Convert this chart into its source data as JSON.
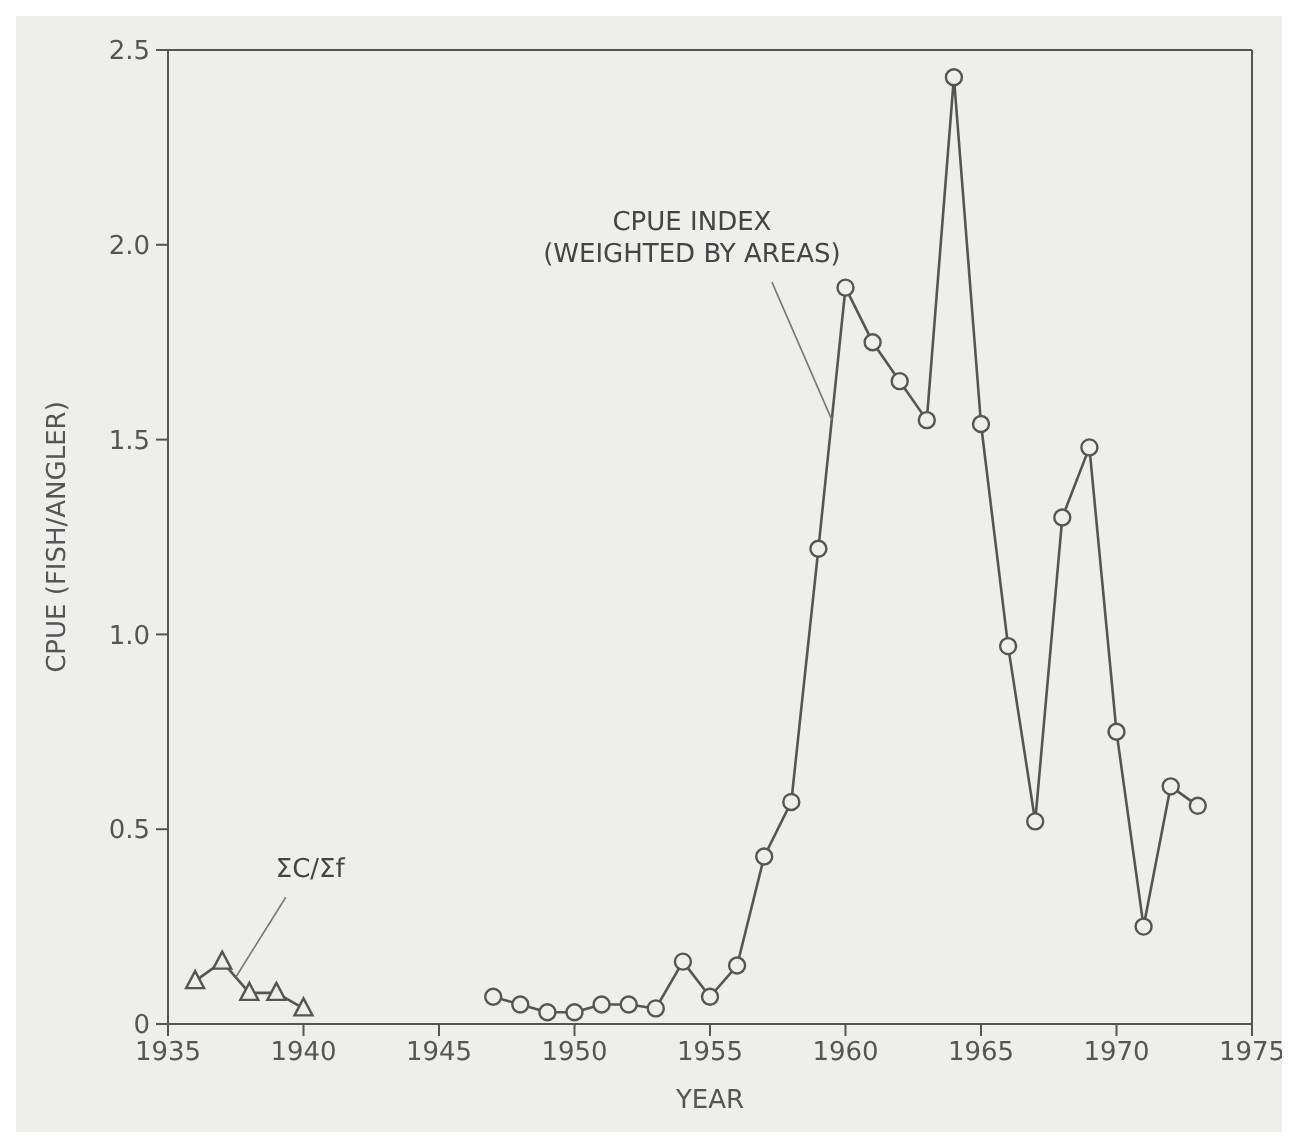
{
  "chart_data": {
    "type": "line",
    "xlabel": "YEAR",
    "ylabel": "CPUE (FISH/ANGLER)",
    "xlim": [
      1935,
      1975
    ],
    "xticks": [
      1935,
      1940,
      1945,
      1950,
      1955,
      1960,
      1965,
      1970,
      1975
    ],
    "ylim": [
      0,
      2.5
    ],
    "yticks": [
      0,
      {
        "value": 0.5,
        "label": "0.5"
      },
      {
        "value": 1,
        "label": "1.0"
      },
      {
        "value": 1.5,
        "label": "1.5"
      },
      {
        "value": 2,
        "label": "2.0"
      },
      {
        "value": 2.5,
        "label": "2.5"
      }
    ],
    "grid": false,
    "legend": false,
    "line_style": "solid",
    "series": [
      {
        "color": "#555555",
        "marker": "triangle",
        "x": [
          1936,
          1937,
          1938,
          1939,
          1940
        ],
        "values": [
          0.11,
          0.16,
          0.08,
          0.08,
          0.04
        ]
      },
      {
        "color": "#555555",
        "marker": "circle",
        "x": [
          1947,
          1948,
          1949,
          1950,
          1951,
          1952,
          1953,
          1954,
          1955,
          1956,
          1957,
          1958,
          1959,
          1960,
          1961,
          1962,
          1963,
          1964,
          1965,
          1966,
          1967,
          1968,
          1969,
          1970,
          1971,
          1972,
          1973
        ],
        "values": [
          0.07,
          0.05,
          0.03,
          0.03,
          0.05,
          0.05,
          0.04,
          0.16,
          0.07,
          0.15,
          0.43,
          0.57,
          1.22,
          1.89,
          1.75,
          1.65,
          1.55,
          2.43,
          1.54,
          0.97,
          0.52,
          1.3,
          1.48,
          0.75,
          0.25,
          0.61,
          0.56
        ]
      }
    ],
    "annotations": [
      {
        "text": "CPUE INDEX\n(WEIGHTED BY AREAS)",
        "x": 1959.5,
        "y": 1.55
      },
      {
        "text": "ΣC/Σf",
        "x": 1937.5,
        "y": 0.12
      }
    ]
  }
}
